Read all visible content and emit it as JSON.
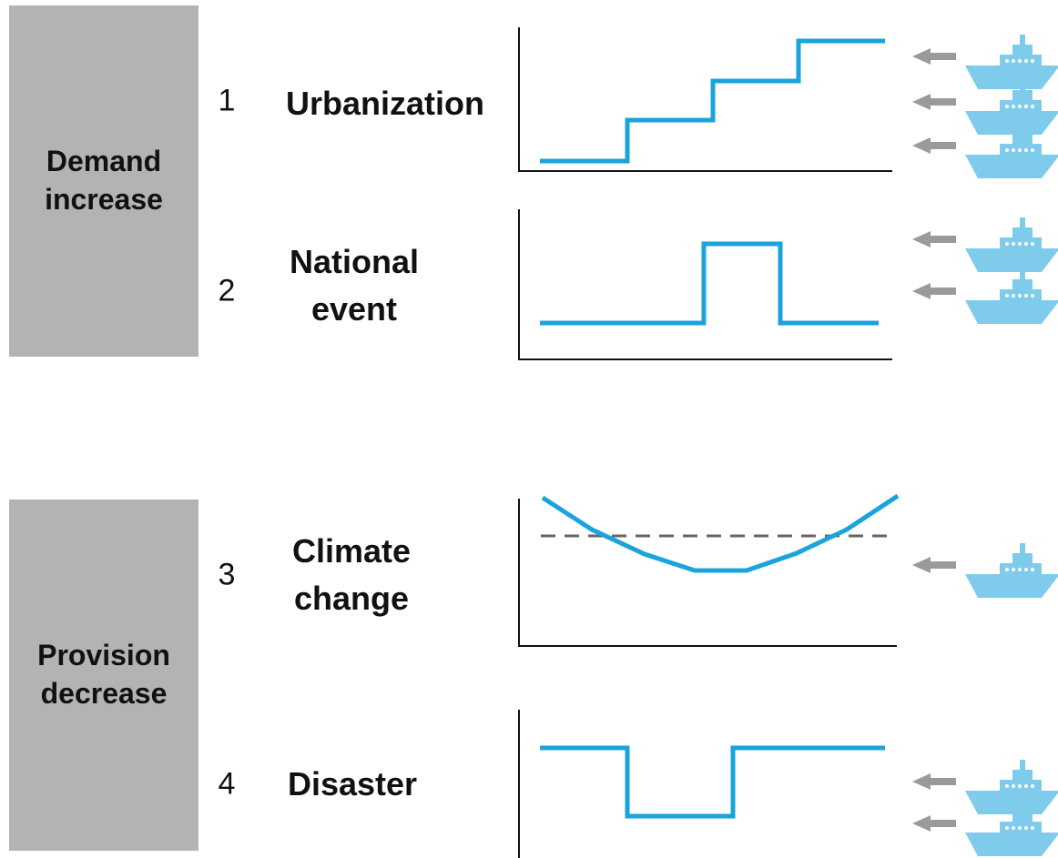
{
  "colors": {
    "group_box": "#b3b3b3",
    "line": "#1aa3dd",
    "arrow": "#9a9a9a",
    "ship": "#7fcbec",
    "threshold": "#666666",
    "axis": "#111111"
  },
  "groups": [
    {
      "label": "Demand\nincrease"
    },
    {
      "label": "Provision\ndecrease"
    }
  ],
  "items": [
    {
      "number": "1",
      "label": "Urbanization",
      "profile": "step-increase",
      "ships": 3
    },
    {
      "number": "2",
      "label": "National\nevent",
      "profile": "pulse-up",
      "ships": 2
    },
    {
      "number": "3",
      "label": "Climate\nchange",
      "profile": "u-curve-with-threshold",
      "ships": 1
    },
    {
      "number": "4",
      "label": "Disaster",
      "profile": "pulse-down",
      "ships": 2
    }
  ],
  "icons": {
    "arrow": "left-arrow-icon",
    "ship": "ship-icon"
  }
}
